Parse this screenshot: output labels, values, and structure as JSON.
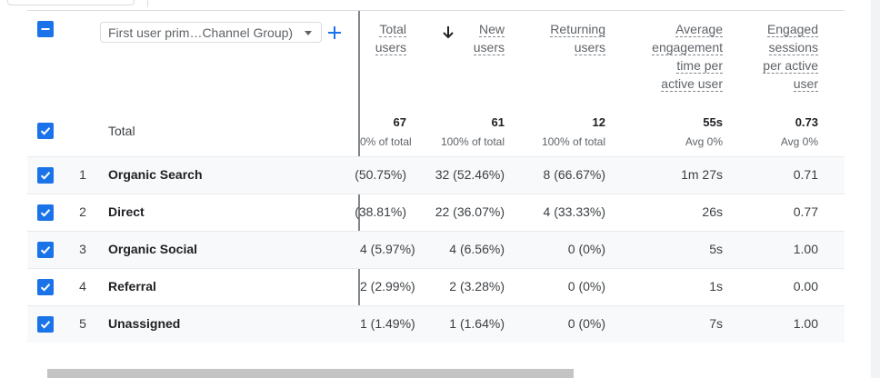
{
  "dimension_selector": {
    "label": "First user prim…Channel Group)"
  },
  "columns": {
    "total_users": [
      "Total",
      "users"
    ],
    "new_users": [
      "New",
      "users"
    ],
    "returning_users": [
      "Returning",
      "users"
    ],
    "avg_engagement": [
      "Average",
      "engagement",
      "time per",
      "active user"
    ],
    "engaged_sessions": [
      "Engaged",
      "sessions",
      "per active",
      "user"
    ]
  },
  "totals": {
    "label": "Total",
    "total_users": "67",
    "total_users_sub": "0% of total",
    "new_users": "61",
    "new_users_sub": "100% of total",
    "returning_users": "12",
    "returning_users_sub": "100% of total",
    "avg_engagement": "55s",
    "avg_engagement_sub": "Avg 0%",
    "engaged_sessions": "0.73",
    "engaged_sessions_sub": "Avg 0%"
  },
  "rows": [
    {
      "rank": "1",
      "channel": "Organic Search",
      "total_users": "(50.75%)",
      "new_users": "32 (52.46%)",
      "returning_users": "8 (66.67%)",
      "avg_engagement": "1m 27s",
      "engaged_sessions": "0.71"
    },
    {
      "rank": "2",
      "channel": "Direct",
      "total_users": "(38.81%)",
      "new_users": "22 (36.07%)",
      "returning_users": "4 (33.33%)",
      "avg_engagement": "26s",
      "engaged_sessions": "0.77"
    },
    {
      "rank": "3",
      "channel": "Organic Social",
      "total_users": "4 (5.97%)",
      "new_users": "4 (6.56%)",
      "returning_users": "0 (0%)",
      "avg_engagement": "5s",
      "engaged_sessions": "1.00"
    },
    {
      "rank": "4",
      "channel": "Referral",
      "total_users": "2 (2.99%)",
      "new_users": "2 (3.28%)",
      "returning_users": "0 (0%)",
      "avg_engagement": "1s",
      "engaged_sessions": "0.00"
    },
    {
      "rank": "5",
      "channel": "Unassigned",
      "total_users": "1 (1.49%)",
      "new_users": "1 (1.64%)",
      "returning_users": "0 (0%)",
      "avg_engagement": "7s",
      "engaged_sessions": "1.00"
    }
  ],
  "icons": {
    "header_checkbox": "minus-checkbox-icon",
    "row_checkbox": "checked-checkbox-icon",
    "add": "plus-icon",
    "sort": "arrow-down-icon",
    "dropdown": "caret-down-icon"
  },
  "colors": {
    "accent": "#1a73e8",
    "row_shade": "#f8f9fa"
  }
}
